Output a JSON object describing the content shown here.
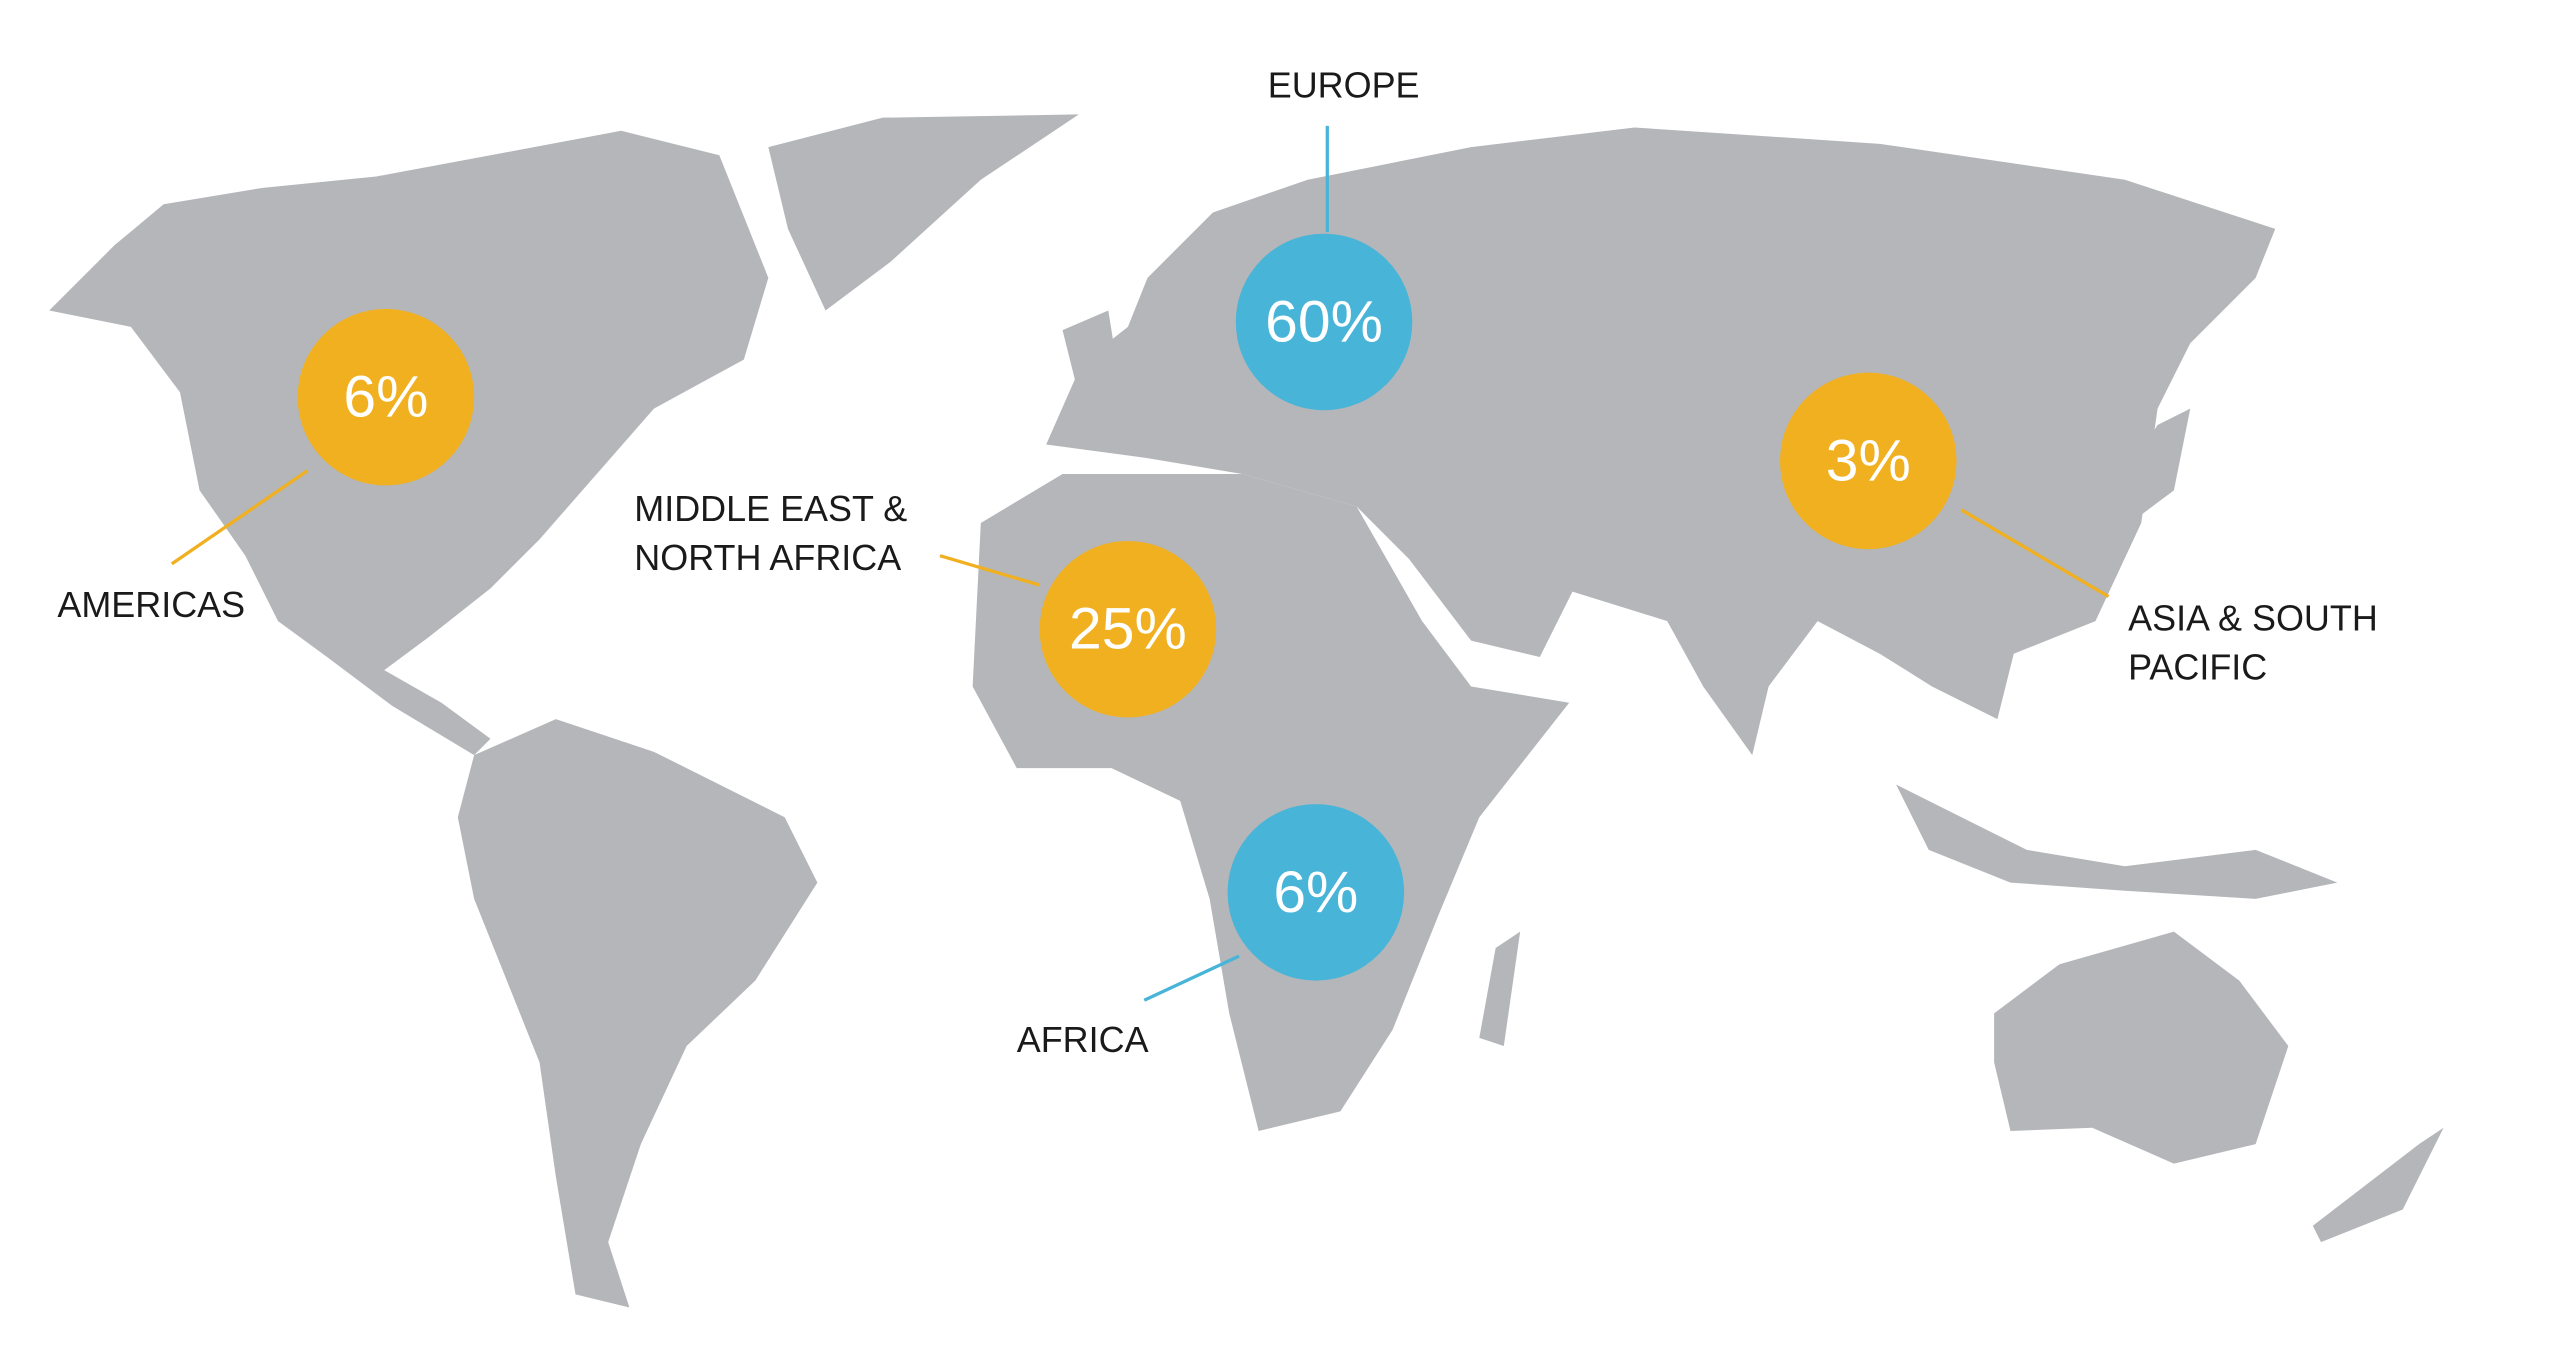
{
  "regions": [
    {
      "name": [
        "AMERICAS"
      ],
      "value": 6,
      "value_label": "6%",
      "color": "#f0b020"
    },
    {
      "name": [
        "EUROPE"
      ],
      "value": 60,
      "value_label": "60%",
      "color": "#48b4d8"
    },
    {
      "name": [
        "MIDDLE EAST &",
        "NORTH AFRICA"
      ],
      "value": 25,
      "value_label": "25%",
      "color": "#f0b020"
    },
    {
      "name": [
        "ASIA & SOUTH",
        "PACIFIC"
      ],
      "value": 3,
      "value_label": "3%",
      "color": "#f0b020"
    },
    {
      "name": [
        "AFRICA"
      ],
      "value": 6,
      "value_label": "6%",
      "color": "#48b4d8"
    }
  ]
}
